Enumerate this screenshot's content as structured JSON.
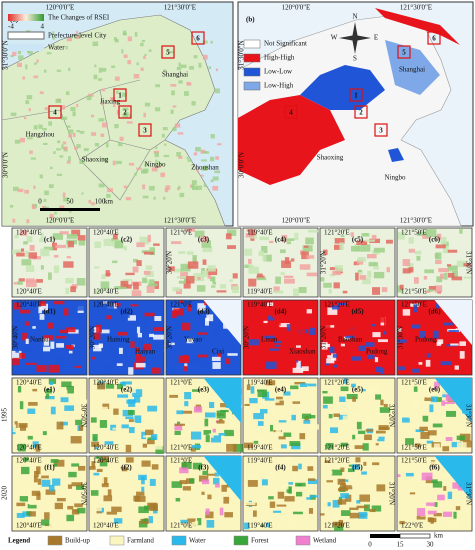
{
  "panel_a": {
    "label": "(a)",
    "lon_top": [
      "120°0'0\"E",
      "121°30'0\"E"
    ],
    "lon_bottom": [
      "120°0'0\"E",
      "121°30'0\"E"
    ],
    "lat": [
      "31°30'0\"N",
      "30°0'0\"N"
    ],
    "legend": {
      "title": "The Changes of RSEI",
      "min": "-4",
      "max": "4",
      "city": "Prefecture-level City",
      "water": "Water"
    },
    "cities": [
      "Shanghai",
      "Jiaxing",
      "Hangzhou",
      "Shaoxing",
      "Ningbo",
      "Zhoushan"
    ],
    "boxes": [
      "1",
      "2",
      "3",
      "4",
      "5",
      "6"
    ],
    "scale": [
      "0",
      "50",
      "100",
      "km"
    ]
  },
  "panel_b": {
    "label": "(b)",
    "lon_top": [
      "120°0'0\"E",
      "121°30'0\"E"
    ],
    "lon_bottom": [
      "120°0'0\"E",
      "121°30'0\"E"
    ],
    "lat": [
      "31°30'0\"N",
      "30°0'0\"N"
    ],
    "legend": [
      {
        "name": "Not Significant",
        "color": "#ffffff"
      },
      {
        "name": "High-High",
        "color": "#e8141b"
      },
      {
        "name": "Low-Low",
        "color": "#1f55d6"
      },
      {
        "name": "Low-High",
        "color": "#7fa8e8"
      }
    ],
    "cities": [
      "Shanghai",
      "Shaoxing",
      "Ningbo"
    ],
    "boxes": [
      "1",
      "2",
      "3",
      "4",
      "5",
      "6"
    ],
    "compass": [
      "N",
      "S",
      "W",
      "E"
    ]
  },
  "rows": [
    {
      "kind": "rsei",
      "panels": [
        {
          "label": "(c1)",
          "coords": [
            "120°40'E",
            "120°40'E"
          ]
        },
        {
          "label": "(c2)",
          "coords": [
            "120°40'E",
            "120°40'E"
          ]
        },
        {
          "label": "(c3)",
          "coords": [
            "121°0'E",
            "30°20'N"
          ]
        },
        {
          "label": "(c4)",
          "coords": [
            "119°40'E",
            "119°40'E"
          ]
        },
        {
          "label": "(c5)",
          "coords": [
            "121°20'E",
            "31°20'N"
          ]
        },
        {
          "label": "(c6)",
          "coords": [
            "121°50'E",
            "121°50'E",
            "31°30'N"
          ]
        }
      ]
    },
    {
      "kind": "lisa",
      "panels": [
        {
          "label": "(d1)",
          "coords": [
            "120°40'E",
            "30°40'N"
          ],
          "places": [
            "Nanhu"
          ]
        },
        {
          "label": "(d2)",
          "coords": [
            "120°40'E",
            "30°20'N"
          ],
          "places": [
            "Haining",
            "Haiyan"
          ]
        },
        {
          "label": "(d3)",
          "coords": [
            "121°0'E",
            "30°20'N"
          ],
          "places": [
            "Yuyao",
            "Cixi"
          ]
        },
        {
          "label": "(d4)",
          "coords": [
            "119°40'E",
            "30°20'N"
          ],
          "places": [
            "Linan",
            "Xiaoshan"
          ]
        },
        {
          "label": "(d5)",
          "coords": [
            "121°20'E",
            "31°20'N"
          ],
          "places": [
            "Baoshan",
            "Pudong"
          ]
        },
        {
          "label": "(d6)",
          "coords": [
            "121°50'E",
            "31°30'N"
          ],
          "places": [
            "Pudong"
          ]
        }
      ]
    },
    {
      "kind": "lu1995",
      "panels": [
        {
          "label": "(e1)",
          "coords": [
            "120°40'E",
            "120°40'E",
            "30°50'N"
          ]
        },
        {
          "label": "(e2)",
          "coords": [
            "120°40'E",
            "120°40'E"
          ]
        },
        {
          "label": "(e3)",
          "coords": [
            "121°0'E",
            "121°0'E"
          ]
        },
        {
          "label": "(e4)",
          "coords": [
            "119°40'E",
            "119°40'E"
          ]
        },
        {
          "label": "(e5)",
          "coords": [
            "121°20'E",
            "121°20'E",
            "31°20'N"
          ]
        },
        {
          "label": "(e6)",
          "coords": [
            "121°50'E",
            "121°50'E",
            "31°30'N"
          ]
        }
      ]
    },
    {
      "kind": "lu2020",
      "panels": [
        {
          "label": "(f1)",
          "coords": [
            "120°40'E",
            "120°40'E",
            "30°50'N"
          ]
        },
        {
          "label": "(f2)",
          "coords": [
            "120°40'E",
            "120°40'E"
          ]
        },
        {
          "label": "(f3)",
          "coords": [
            "121°0'E",
            "121°0'E"
          ]
        },
        {
          "label": "(f4)",
          "coords": [
            "119°40'E",
            "119°40'E"
          ]
        },
        {
          "label": "(f5)",
          "coords": [
            "121°20'E",
            "121°20'E",
            "31°20'N"
          ]
        },
        {
          "label": "(f6)",
          "coords": [
            "121°50'E",
            "122°0'E",
            "31°30'N"
          ]
        }
      ]
    }
  ],
  "year_labels": [
    "1995",
    "2020"
  ],
  "legend": {
    "title": "Legend",
    "items": [
      {
        "name": "Build-up",
        "color": "#a8792a"
      },
      {
        "name": "Farmland",
        "color": "#fbf6c0"
      },
      {
        "name": "Water",
        "color": "#29b9ea"
      },
      {
        "name": "Forest",
        "color": "#3aa53a"
      },
      {
        "name": "Wetland",
        "color": "#f07fd0"
      }
    ],
    "scale": [
      "0",
      "15",
      "30",
      "km"
    ]
  }
}
